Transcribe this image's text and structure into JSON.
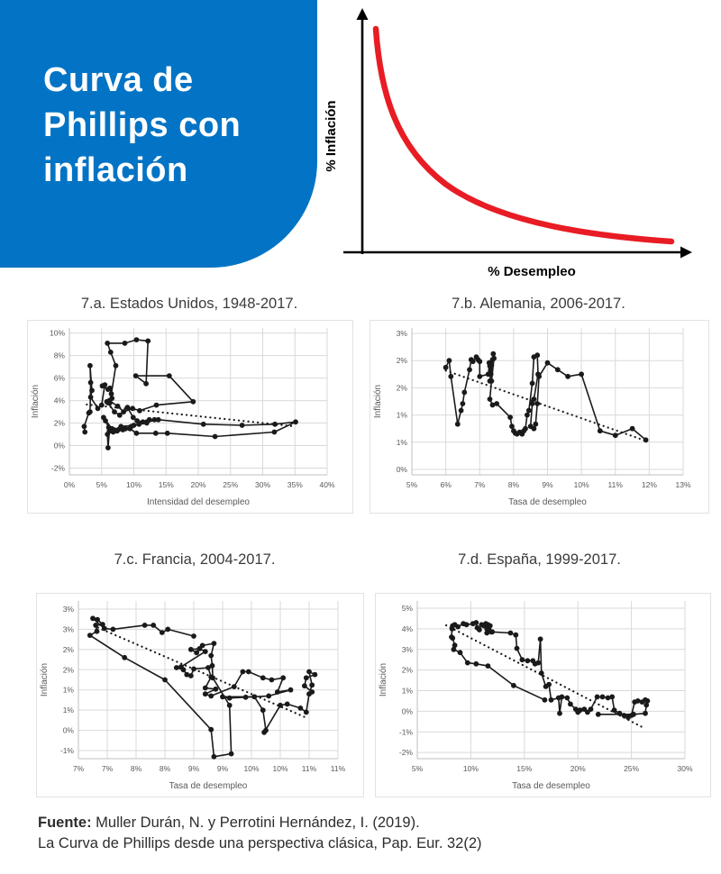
{
  "header": {
    "title_lines": [
      "Curva de",
      "Phillips con",
      "inflación"
    ],
    "bg_color": "#0374c5",
    "text_color": "#ffffff"
  },
  "chart_data": [
    {
      "id": "concept",
      "type": "line",
      "title": "",
      "xlabel": "% Desempleo",
      "ylabel": "% Inflación",
      "curve": "downward-sloping convex (hyperbolic) Phillips curve, no numeric scale",
      "curve_color": "#e81c24",
      "axis_color": "#000000"
    },
    {
      "id": "7a",
      "type": "scatter",
      "title": "7.a. Estados Unidos, 1948-2017.",
      "xlabel": "Intensidad del desempleo",
      "ylabel": "Inflación",
      "xlim": [
        0,
        40
      ],
      "ylim": [
        -2.6,
        10.45
      ],
      "x_ticks": {
        "values": [
          0,
          5,
          10,
          15,
          20,
          25,
          30,
          35,
          40
        ],
        "labels": [
          "0%",
          "5%",
          "10%",
          "15%",
          "20%",
          "25%",
          "30%",
          "35%",
          "40%"
        ]
      },
      "y_ticks": {
        "values": [
          -2,
          0,
          2,
          4,
          6,
          8,
          10
        ],
        "labels": [
          "-2%",
          "0%",
          "2%",
          "4%",
          "6%",
          "8%",
          "10%"
        ]
      },
      "grid": "on",
      "legend": "none",
      "trend_style": "dotted",
      "trend": [
        [
          2.7,
          3.65
        ],
        [
          34.8,
          1.72
        ]
      ],
      "points": [
        [
          2.4,
          1.2
        ],
        [
          2.3,
          1.7
        ],
        [
          3.0,
          2.9
        ],
        [
          3.2,
          3.0
        ],
        [
          3.3,
          5.6
        ],
        [
          3.2,
          7.1
        ],
        [
          3.5,
          4.9
        ],
        [
          3.3,
          4.3
        ],
        [
          4.4,
          3.3
        ],
        [
          5.0,
          3.6
        ],
        [
          5.5,
          5.4
        ],
        [
          5.1,
          5.3
        ],
        [
          6.0,
          5.0
        ],
        [
          6.3,
          5.1
        ],
        [
          6.5,
          4.6
        ],
        [
          6.6,
          4.2
        ],
        [
          5.8,
          3.9
        ],
        [
          6.3,
          3.8
        ],
        [
          7.2,
          7.1
        ],
        [
          6.4,
          8.3
        ],
        [
          5.9,
          9.1
        ],
        [
          8.6,
          9.1
        ],
        [
          10.4,
          9.4
        ],
        [
          12.2,
          9.3
        ],
        [
          11.9,
          5.5
        ],
        [
          10.3,
          6.2
        ],
        [
          15.5,
          6.2
        ],
        [
          19.2,
          3.9
        ],
        [
          13.5,
          3.6
        ],
        [
          10.9,
          3.1
        ],
        [
          9.8,
          3.3
        ],
        [
          8.4,
          3.0
        ],
        [
          7.5,
          3.5
        ],
        [
          6.2,
          4.0
        ],
        [
          6.0,
          3.8
        ],
        [
          7.0,
          3.0
        ],
        [
          7.8,
          2.7
        ],
        [
          9.0,
          3.4
        ],
        [
          9.9,
          2.5
        ],
        [
          10.5,
          2.2
        ],
        [
          11.4,
          2.1
        ],
        [
          12.4,
          2.3
        ],
        [
          13.2,
          2.3
        ],
        [
          12.0,
          2.0
        ],
        [
          10.8,
          1.9
        ],
        [
          9.6,
          1.7
        ],
        [
          8.7,
          1.5
        ],
        [
          7.6,
          1.4
        ],
        [
          6.8,
          1.2
        ],
        [
          6.1,
          1.6
        ],
        [
          5.6,
          2.2
        ],
        [
          5.3,
          2.5
        ],
        [
          6.6,
          1.5
        ],
        [
          7.4,
          1.3
        ],
        [
          8.3,
          1.4
        ],
        [
          9.4,
          1.5
        ],
        [
          10.4,
          1.1
        ],
        [
          13.4,
          1.1
        ],
        [
          15.2,
          1.1
        ],
        [
          22.6,
          0.8
        ],
        [
          31.8,
          1.2
        ],
        [
          35.1,
          2.1
        ],
        [
          31.9,
          1.9
        ],
        [
          26.8,
          1.8
        ],
        [
          20.8,
          1.9
        ],
        [
          13.8,
          2.3
        ],
        [
          12.0,
          2.1
        ],
        [
          10.0,
          1.8
        ],
        [
          8.0,
          1.7
        ],
        [
          6.9,
          1.4
        ],
        [
          6.2,
          1.3
        ],
        [
          6.0,
          -0.2
        ],
        [
          5.9,
          1.0
        ],
        [
          6.3,
          1.3
        ]
      ]
    },
    {
      "id": "7b",
      "type": "scatter",
      "title": "7.b. Alemania, 2006-2017.",
      "xlabel": "Tasa de desempleo",
      "ylabel": "Inflación",
      "xlim": [
        5,
        13
      ],
      "ylim": [
        -0.12,
        3.12
      ],
      "x_ticks": {
        "values": [
          5,
          6,
          7,
          8,
          9,
          10,
          11,
          12,
          13
        ],
        "labels": [
          "5%",
          "6%",
          "7%",
          "8%",
          "9%",
          "10%",
          "11%",
          "12%",
          "13%"
        ]
      },
      "y_ticks": {
        "values": [
          0,
          0.6,
          1.2,
          1.8,
          2.4,
          3
        ],
        "labels": [
          "0%",
          "1%",
          "1%",
          "2%",
          "2%",
          "3%"
        ]
      },
      "grid": "on",
      "legend": "none",
      "trend_style": "dotted",
      "trend": [
        [
          6.0,
          2.18
        ],
        [
          11.9,
          0.63
        ]
      ],
      "points": [
        [
          6.0,
          2.25
        ],
        [
          6.1,
          2.4
        ],
        [
          6.15,
          2.05
        ],
        [
          6.35,
          1.0
        ],
        [
          6.45,
          1.3
        ],
        [
          6.5,
          1.45
        ],
        [
          6.55,
          1.7
        ],
        [
          6.7,
          2.2
        ],
        [
          6.75,
          2.42
        ],
        [
          6.8,
          2.38
        ],
        [
          6.9,
          2.48
        ],
        [
          6.95,
          2.42
        ],
        [
          7.0,
          2.38
        ],
        [
          7.0,
          2.05
        ],
        [
          7.25,
          2.1
        ],
        [
          7.3,
          2.28
        ],
        [
          7.32,
          2.2
        ],
        [
          7.28,
          2.35
        ],
        [
          7.33,
          2.1
        ],
        [
          7.3,
          1.95
        ],
        [
          7.35,
          2.3
        ],
        [
          7.38,
          2.42
        ],
        [
          7.4,
          2.55
        ],
        [
          7.42,
          2.45
        ],
        [
          7.35,
          1.95
        ],
        [
          7.3,
          1.55
        ],
        [
          7.38,
          1.42
        ],
        [
          7.5,
          1.45
        ],
        [
          7.9,
          1.15
        ],
        [
          7.95,
          0.95
        ],
        [
          8.0,
          0.85
        ],
        [
          8.05,
          0.8
        ],
        [
          8.1,
          0.78
        ],
        [
          8.18,
          0.82
        ],
        [
          8.25,
          0.78
        ],
        [
          8.3,
          0.85
        ],
        [
          8.35,
          0.9
        ],
        [
          8.4,
          1.2
        ],
        [
          8.45,
          1.3
        ],
        [
          8.55,
          1.9
        ],
        [
          8.6,
          2.48
        ],
        [
          8.7,
          2.52
        ],
        [
          8.72,
          2.1
        ],
        [
          8.6,
          1.55
        ],
        [
          8.55,
          1.45
        ],
        [
          8.5,
          0.95
        ],
        [
          8.6,
          0.9
        ],
        [
          8.65,
          1.0
        ],
        [
          8.7,
          1.45
        ],
        [
          8.75,
          2.05
        ],
        [
          9.0,
          2.35
        ],
        [
          9.3,
          2.2
        ],
        [
          9.6,
          2.05
        ],
        [
          10.0,
          2.1
        ],
        [
          10.55,
          0.85
        ],
        [
          11.0,
          0.75
        ],
        [
          11.5,
          0.9
        ],
        [
          11.9,
          0.65
        ]
      ]
    },
    {
      "id": "7c",
      "type": "scatter",
      "title": "7.c. Francia, 2004-2017.",
      "xlabel": "Tasa de desempleo",
      "ylabel": "Inflación",
      "xlim": [
        7,
        11.5
      ],
      "ylim": [
        -0.7,
        3.2
      ],
      "x_ticks": {
        "values": [
          7,
          7.5,
          8,
          8.5,
          9,
          9.5,
          10,
          10.5,
          11,
          11.5
        ],
        "labels": [
          "7%",
          "7%",
          "8%",
          "8%",
          "9%",
          "9%",
          "10%",
          "10%",
          "11%",
          "11%"
        ]
      },
      "y_ticks": {
        "values": [
          -0.5,
          0,
          0.5,
          1,
          1.5,
          2,
          2.5,
          3
        ],
        "labels": [
          "-1%",
          "0%",
          "1%",
          "1%",
          "2%",
          "2%",
          "3%",
          "3%"
        ]
      },
      "grid": "on",
      "legend": "none",
      "trend_style": "dotted",
      "trend": [
        [
          7.34,
          2.54
        ],
        [
          10.94,
          0.32
        ]
      ],
      "points": [
        [
          9.0,
          2.33
        ],
        [
          8.55,
          2.5
        ],
        [
          8.45,
          2.42
        ],
        [
          8.3,
          2.6
        ],
        [
          8.15,
          2.6
        ],
        [
          7.6,
          2.5
        ],
        [
          7.45,
          2.52
        ],
        [
          7.25,
          2.77
        ],
        [
          7.33,
          2.74
        ],
        [
          7.42,
          2.62
        ],
        [
          7.3,
          2.6
        ],
        [
          7.32,
          2.45
        ],
        [
          7.2,
          2.35
        ],
        [
          7.8,
          1.8
        ],
        [
          8.5,
          1.25
        ],
        [
          9.3,
          0.02
        ],
        [
          9.35,
          -0.65
        ],
        [
          9.65,
          -0.58
        ],
        [
          9.62,
          0.62
        ],
        [
          9.33,
          1.3
        ],
        [
          9.32,
          1.6
        ],
        [
          9.3,
          1.85
        ],
        [
          9.35,
          2.15
        ],
        [
          9.15,
          2.1
        ],
        [
          9.05,
          1.92
        ],
        [
          8.95,
          2.0
        ],
        [
          9.1,
          2.02
        ],
        [
          9.2,
          1.95
        ],
        [
          8.78,
          1.57
        ],
        [
          8.7,
          1.55
        ],
        [
          8.82,
          1.5
        ],
        [
          8.88,
          1.38
        ],
        [
          8.95,
          1.35
        ],
        [
          9.0,
          1.52
        ],
        [
          9.25,
          1.55
        ],
        [
          9.3,
          1.32
        ],
        [
          9.2,
          1.05
        ],
        [
          9.38,
          1.02
        ],
        [
          9.2,
          0.9
        ],
        [
          9.3,
          0.85
        ],
        [
          9.7,
          1.08
        ],
        [
          9.85,
          1.45
        ],
        [
          9.95,
          1.45
        ],
        [
          10.2,
          1.3
        ],
        [
          10.35,
          1.25
        ],
        [
          10.55,
          1.3
        ],
        [
          10.45,
          0.95
        ],
        [
          10.68,
          1.0
        ],
        [
          10.3,
          0.85
        ],
        [
          9.9,
          0.82
        ],
        [
          9.62,
          0.8
        ],
        [
          9.5,
          0.83
        ],
        [
          10.05,
          0.83
        ],
        [
          10.2,
          0.5
        ],
        [
          10.25,
          0.0
        ],
        [
          10.22,
          -0.05
        ],
        [
          10.5,
          0.62
        ],
        [
          10.62,
          0.65
        ],
        [
          10.85,
          0.55
        ],
        [
          10.95,
          0.45
        ],
        [
          11.0,
          0.9
        ],
        [
          11.05,
          1.12
        ],
        [
          11.0,
          1.45
        ],
        [
          11.1,
          1.38
        ],
        [
          10.95,
          1.3
        ],
        [
          10.92,
          1.1
        ],
        [
          11.05,
          0.95
        ]
      ]
    },
    {
      "id": "7d",
      "type": "scatter",
      "title": "7.d. España, 1999-2017.",
      "xlabel": "Tasa de desempleo",
      "ylabel": "Inflación",
      "xlim": [
        5,
        30
      ],
      "ylim": [
        -2.3,
        5.35
      ],
      "x_ticks": {
        "values": [
          5,
          10,
          15,
          20,
          25,
          30
        ],
        "labels": [
          "5%",
          "10%",
          "15%",
          "20%",
          "25%",
          "30%"
        ]
      },
      "y_ticks": {
        "values": [
          -2,
          -1,
          0,
          1,
          2,
          3,
          4,
          5
        ],
        "labels": [
          "-2%",
          "-1%",
          "0%",
          "1%",
          "2%",
          "3%",
          "4%",
          "5%"
        ]
      },
      "grid": "on",
      "legend": "none",
      "trend_style": "dotted",
      "trend": [
        [
          7.7,
          4.17
        ],
        [
          26.2,
          -0.82
        ]
      ],
      "points": [
        [
          16.9,
          0.55
        ],
        [
          14.0,
          1.25
        ],
        [
          11.6,
          2.2
        ],
        [
          10.5,
          2.3
        ],
        [
          9.7,
          2.35
        ],
        [
          9.0,
          2.85
        ],
        [
          8.4,
          3.0
        ],
        [
          8.5,
          3.2
        ],
        [
          8.3,
          3.55
        ],
        [
          8.2,
          3.6
        ],
        [
          8.25,
          4.0
        ],
        [
          8.3,
          4.15
        ],
        [
          8.5,
          4.2
        ],
        [
          8.8,
          4.1
        ],
        [
          9.3,
          4.25
        ],
        [
          9.6,
          4.2
        ],
        [
          10.2,
          4.25
        ],
        [
          10.5,
          4.3
        ],
        [
          10.6,
          4.05
        ],
        [
          10.8,
          3.95
        ],
        [
          11.0,
          4.2
        ],
        [
          11.2,
          4.15
        ],
        [
          11.4,
          4.25
        ],
        [
          11.5,
          4.0
        ],
        [
          11.6,
          4.2
        ],
        [
          11.7,
          3.9
        ],
        [
          11.8,
          4.15
        ],
        [
          11.9,
          3.85
        ],
        [
          11.5,
          3.8
        ],
        [
          12.0,
          3.85
        ],
        [
          13.7,
          3.8
        ],
        [
          14.2,
          3.7
        ],
        [
          14.3,
          3.05
        ],
        [
          14.8,
          2.5
        ],
        [
          15.3,
          2.45
        ],
        [
          15.8,
          2.45
        ],
        [
          16.0,
          2.3
        ],
        [
          16.3,
          2.35
        ],
        [
          16.5,
          3.5
        ],
        [
          16.6,
          1.85
        ],
        [
          17.0,
          1.2
        ],
        [
          17.3,
          1.3
        ],
        [
          17.5,
          0.55
        ],
        [
          18.2,
          0.65
        ],
        [
          18.3,
          -0.1
        ],
        [
          18.5,
          0.7
        ],
        [
          19.0,
          0.65
        ],
        [
          19.3,
          0.35
        ],
        [
          19.8,
          0.1
        ],
        [
          20.0,
          -0.05
        ],
        [
          20.2,
          0.05
        ],
        [
          20.6,
          0.1
        ],
        [
          20.9,
          -0.05
        ],
        [
          21.2,
          0.1
        ],
        [
          21.8,
          0.7
        ],
        [
          22.3,
          0.7
        ],
        [
          22.8,
          0.65
        ],
        [
          23.2,
          0.7
        ],
        [
          23.4,
          0.05
        ],
        [
          23.9,
          -0.1
        ],
        [
          24.3,
          -0.2
        ],
        [
          24.7,
          -0.3
        ],
        [
          25.0,
          -0.2
        ],
        [
          25.3,
          0.45
        ],
        [
          25.6,
          0.5
        ],
        [
          26.0,
          0.45
        ],
        [
          26.3,
          0.55
        ],
        [
          26.5,
          0.5
        ],
        [
          26.4,
          0.3
        ],
        [
          26.3,
          -0.1
        ],
        [
          25.2,
          -0.15
        ],
        [
          21.9,
          -0.15
        ]
      ]
    }
  ],
  "style": {
    "grid_color": "#d9d9d9",
    "axis_color": "#bfbfbf",
    "tick_color": "#595959",
    "data_color": "#1a1a1a"
  },
  "footer": {
    "source_label": "Fuente:",
    "source_rest": " Muller Durán, N. y Perrotini Hernández, I. (2019).",
    "line2": "La Curva de Phillips desde una perspectiva clásica, Pap. Eur. 32(2)"
  }
}
